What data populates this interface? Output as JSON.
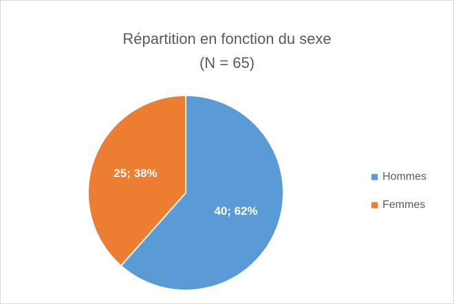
{
  "chart_data": {
    "type": "pie",
    "title": "Répartition en fonction du sexe",
    "subtitle": "(N = 65)",
    "categories": [
      "Hommes",
      "Femmes"
    ],
    "values": [
      40,
      25
    ],
    "value_labels": [
      "40; 62%",
      "25; 38%"
    ],
    "colors": [
      "#5b9bd5",
      "#ed7d31"
    ],
    "legend": "right"
  }
}
